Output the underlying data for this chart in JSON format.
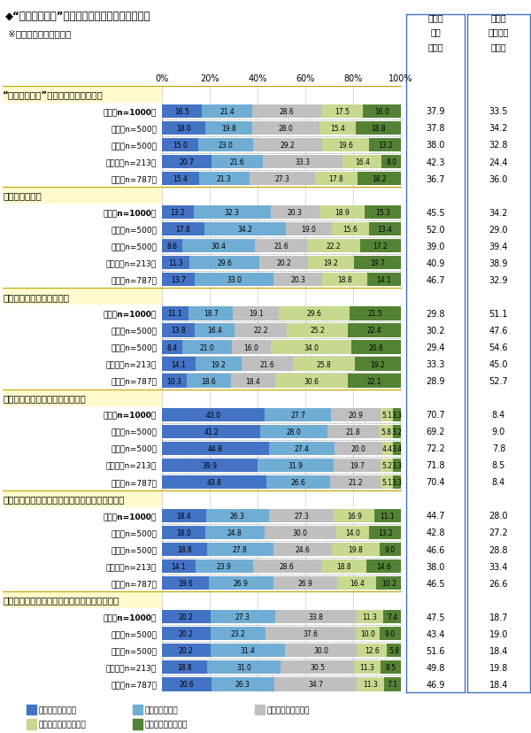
{
  "title": "◆“若者の車離れ”と呼ばれる状況についての意識",
  "subtitle": "※項目毎に単一回答形式",
  "colors": [
    "#4472C4",
    "#70ADD4",
    "#BFBFBF",
    "#C6D98F",
    "#548235"
  ],
  "legend_labels": [
    "とてもあてはまる",
    "ややあてはまる",
    "どちらとも言えない",
    "あまりあてはまらない",
    "全くあてはまらない"
  ],
  "header1": "あてはまる（計）",
  "header2": "あてはまらない（計）",
  "sections": [
    {
      "title": "“若者の車離れ”とは自分自身のことだ",
      "rows": [
        {
          "label": "全体【n=1000】",
          "vals": [
            16.5,
            21.4,
            28.6,
            17.5,
            16.0
          ],
          "sum_yes": 37.9,
          "sum_no": 33.5,
          "bold": true
        },
        {
          "label": "男性【n=500】",
          "vals": [
            18.0,
            19.8,
            28.0,
            15.4,
            18.8
          ],
          "sum_yes": 37.8,
          "sum_no": 34.2,
          "bold": false
        },
        {
          "label": "女性【n=500】",
          "vals": [
            15.0,
            23.0,
            29.2,
            19.6,
            13.2
          ],
          "sum_yes": 38.0,
          "sum_no": 32.8,
          "bold": false
        },
        {
          "label": "都市部【n=213】",
          "vals": [
            20.7,
            21.6,
            33.3,
            16.4,
            8.0
          ],
          "sum_yes": 42.3,
          "sum_no": 24.4,
          "bold": false
        },
        {
          "label": "地方【n=787】",
          "vals": [
            15.4,
            21.3,
            27.3,
            17.8,
            18.2
          ],
          "sum_yes": 36.7,
          "sum_no": 36.0,
          "bold": false
        }
      ]
    },
    {
      "title": "車に興味がある",
      "rows": [
        {
          "label": "全体【n=1000】",
          "vals": [
            13.2,
            32.3,
            20.3,
            18.9,
            15.3
          ],
          "sum_yes": 45.5,
          "sum_no": 34.2,
          "bold": true
        },
        {
          "label": "男性【n=500】",
          "vals": [
            17.8,
            34.2,
            19.0,
            15.6,
            13.4
          ],
          "sum_yes": 52.0,
          "sum_no": 29.0,
          "bold": false
        },
        {
          "label": "女性【n=500】",
          "vals": [
            8.6,
            30.4,
            21.6,
            22.2,
            17.2
          ],
          "sum_yes": 39.0,
          "sum_no": 39.4,
          "bold": false
        },
        {
          "label": "都市部【n=213】",
          "vals": [
            11.3,
            29.6,
            20.2,
            19.2,
            19.7
          ],
          "sum_yes": 40.9,
          "sum_no": 38.9,
          "bold": false
        },
        {
          "label": "地方【n=787】",
          "vals": [
            13.7,
            33.0,
            20.3,
            18.8,
            14.1
          ],
          "sum_yes": 46.7,
          "sum_no": 32.9,
          "bold": false
        }
      ]
    },
    {
      "title": "車に乗る必要性を感じない",
      "rows": [
        {
          "label": "全体【n=1000】",
          "vals": [
            11.1,
            18.7,
            19.1,
            29.6,
            21.5
          ],
          "sum_yes": 29.8,
          "sum_no": 51.1,
          "bold": true
        },
        {
          "label": "男性【n=500】",
          "vals": [
            13.8,
            16.4,
            22.2,
            25.2,
            22.4
          ],
          "sum_yes": 30.2,
          "sum_no": 47.6,
          "bold": false
        },
        {
          "label": "女性【n=500】",
          "vals": [
            8.4,
            21.0,
            16.0,
            34.0,
            20.6
          ],
          "sum_yes": 29.4,
          "sum_no": 54.6,
          "bold": false
        },
        {
          "label": "都市部【n=213】",
          "vals": [
            14.1,
            19.2,
            21.6,
            25.8,
            19.2
          ],
          "sum_yes": 33.3,
          "sum_no": 45.0,
          "bold": false
        },
        {
          "label": "地方【n=787】",
          "vals": [
            10.3,
            18.6,
            18.4,
            30.6,
            22.1
          ],
          "sum_yes": 28.9,
          "sum_no": 52.7,
          "bold": false
        }
      ]
    },
    {
      "title": "車を所有する経済的な余裕がない",
      "rows": [
        {
          "label": "全体【n=1000】",
          "vals": [
            43.0,
            27.7,
            20.9,
            5.1,
            3.3
          ],
          "sum_yes": 70.7,
          "sum_no": 8.4,
          "bold": true
        },
        {
          "label": "男性【n=500】",
          "vals": [
            41.2,
            28.0,
            21.8,
            5.8,
            3.2
          ],
          "sum_yes": 69.2,
          "sum_no": 9.0,
          "bold": false
        },
        {
          "label": "女性【n=500】",
          "vals": [
            44.8,
            27.4,
            20.0,
            4.4,
            3.4
          ],
          "sum_yes": 72.2,
          "sum_no": 7.8,
          "bold": false
        },
        {
          "label": "都市部【n=213】",
          "vals": [
            39.9,
            31.9,
            19.7,
            5.2,
            3.3
          ],
          "sum_yes": 71.8,
          "sum_no": 8.5,
          "bold": false
        },
        {
          "label": "地方【n=787】",
          "vals": [
            43.8,
            26.6,
            21.2,
            5.1,
            3.3
          ],
          "sum_yes": 70.4,
          "sum_no": 8.4,
          "bold": false
        }
      ]
    },
    {
      "title": "同年代で車を所有している人はカッコイイと思う",
      "rows": [
        {
          "label": "全体【n=1000】",
          "vals": [
            18.4,
            26.3,
            27.3,
            16.9,
            11.1
          ],
          "sum_yes": 44.7,
          "sum_no": 28.0,
          "bold": true
        },
        {
          "label": "男性【n=500】",
          "vals": [
            18.0,
            24.8,
            30.0,
            14.0,
            13.2
          ],
          "sum_yes": 42.8,
          "sum_no": 27.2,
          "bold": false
        },
        {
          "label": "女性【n=500】",
          "vals": [
            18.8,
            27.8,
            24.6,
            19.8,
            9.0
          ],
          "sum_yes": 46.6,
          "sum_no": 28.8,
          "bold": false
        },
        {
          "label": "都市部【n=213】",
          "vals": [
            14.1,
            23.9,
            28.6,
            18.8,
            14.6
          ],
          "sum_yes": 38.0,
          "sum_no": 33.4,
          "bold": false
        },
        {
          "label": "地方【n=787】",
          "vals": [
            19.6,
            26.9,
            26.9,
            16.4,
            10.2
          ],
          "sum_yes": 46.5,
          "sum_no": 26.6,
          "bold": false
        }
      ]
    },
    {
      "title": "メーカーにもっと若者向けの車を作ってほしい",
      "rows": [
        {
          "label": "全体【n=1000】",
          "vals": [
            20.2,
            27.3,
            33.8,
            11.3,
            7.4
          ],
          "sum_yes": 47.5,
          "sum_no": 18.7,
          "bold": true
        },
        {
          "label": "男性【n=500】",
          "vals": [
            20.2,
            23.2,
            37.6,
            10.0,
            9.0
          ],
          "sum_yes": 43.4,
          "sum_no": 19.0,
          "bold": false
        },
        {
          "label": "女性【n=500】",
          "vals": [
            20.2,
            31.4,
            30.0,
            12.6,
            5.8
          ],
          "sum_yes": 51.6,
          "sum_no": 18.4,
          "bold": false
        },
        {
          "label": "都市部【n=213】",
          "vals": [
            18.8,
            31.0,
            30.5,
            11.3,
            8.5
          ],
          "sum_yes": 49.8,
          "sum_no": 19.8,
          "bold": false
        },
        {
          "label": "地方【n=787】",
          "vals": [
            20.6,
            26.3,
            34.7,
            11.3,
            7.1
          ],
          "sum_yes": 46.9,
          "sum_no": 18.4,
          "bold": false
        }
      ]
    }
  ]
}
